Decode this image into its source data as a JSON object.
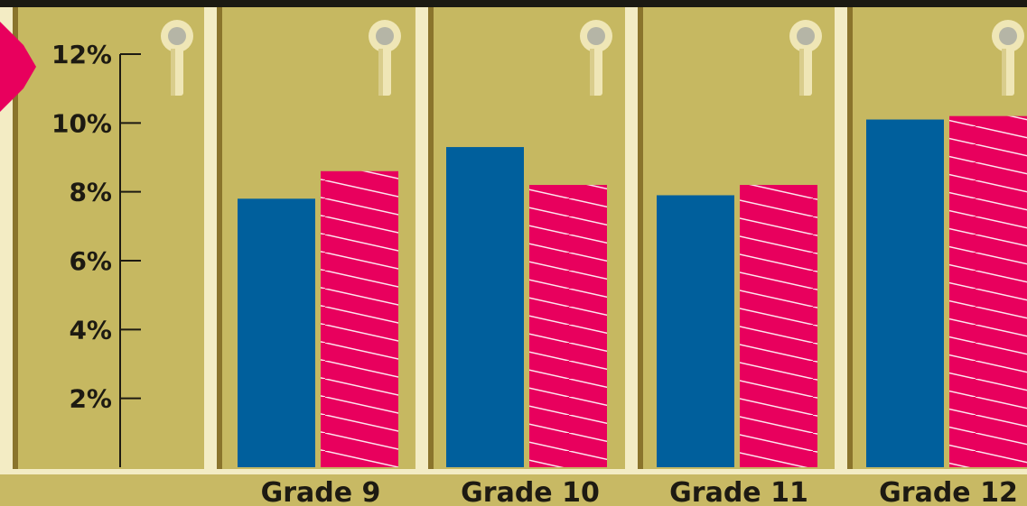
{
  "chart_data": {
    "type": "bar",
    "categories": [
      "Grade 9",
      "Grade 10",
      "Grade 11",
      "Grade 12"
    ],
    "series": [
      {
        "values": [
          7.8,
          9.3,
          7.9,
          10.1
        ]
      },
      {
        "values": [
          8.6,
          8.2,
          8.2,
          10.2
        ]
      }
    ],
    "yticks": [
      "2%",
      "4%",
      "6%",
      "8%",
      "10%",
      "12%"
    ],
    "ylim": [
      0,
      12
    ],
    "title": "",
    "xlabel": "",
    "ylabel": "",
    "grid": false,
    "legend": "none",
    "colors": {
      "series_a": "#005f9c",
      "series_b": "#e8005d",
      "background": "#c8b964",
      "locker_door": "#c6b861",
      "locker_frame": "#8a742c",
      "gap": "#f3ecc4",
      "top_band": "#1b1a12",
      "text": "#1d1a12"
    },
    "icons": [
      "keyhole-icon",
      "pink-tab-icon"
    ]
  }
}
